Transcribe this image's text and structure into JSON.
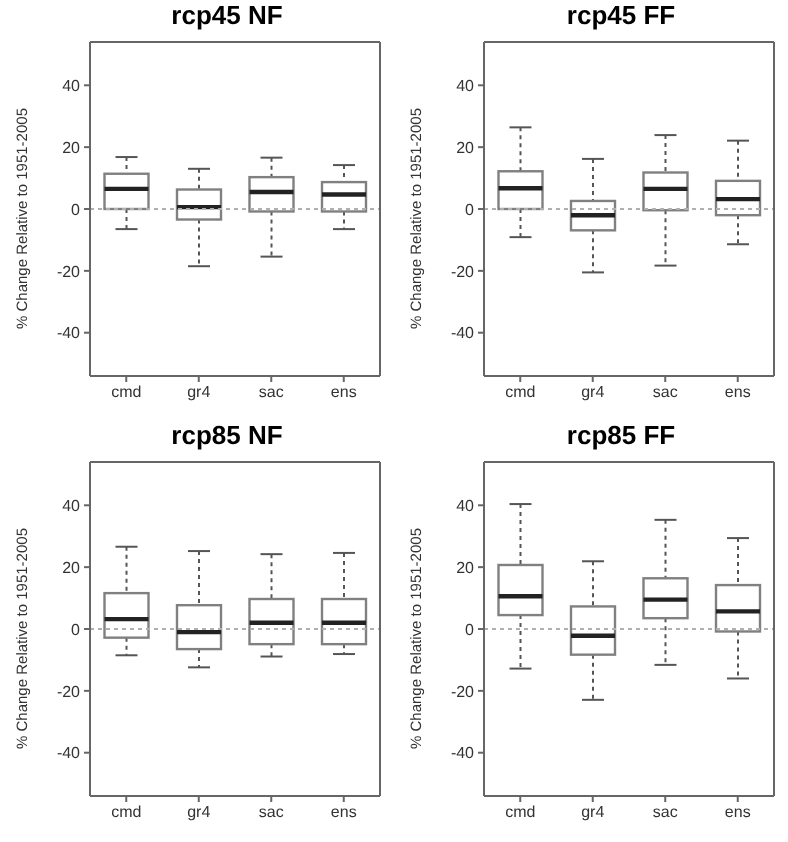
{
  "chart_data": [
    {
      "type": "box",
      "title": "rcp45 NF",
      "ylabel": "% Change Relative to 1951-2005",
      "categories": [
        "cmd",
        "gr4",
        "sac",
        "ens"
      ],
      "color": "#808080",
      "ylim": [
        -54,
        54
      ],
      "yticks": [
        -40,
        -20,
        0,
        20,
        40
      ],
      "ref_lines": [
        {
          "axis": "y",
          "value": 0,
          "line_style": "dotted",
          "color": "#b0b0b0"
        }
      ],
      "boxes": [
        {
          "low": -6.5,
          "q1": 0,
          "median": 6.5,
          "q3": 11.4,
          "high": 16.8
        },
        {
          "low": -18.5,
          "q1": -3.4,
          "median": 0.6,
          "q3": 6.3,
          "high": 13
        },
        {
          "low": -15.4,
          "q1": -0.8,
          "median": 5.5,
          "q3": 10.3,
          "high": 16.6
        },
        {
          "low": -6.5,
          "q1": -0.8,
          "median": 4.7,
          "q3": 8.7,
          "high": 14.2
        }
      ]
    },
    {
      "type": "box",
      "title": "rcp45 FF",
      "ylabel": "% Change Relative to 1951-2005",
      "categories": [
        "cmd",
        "gr4",
        "sac",
        "ens"
      ],
      "color": "#808080",
      "ylim": [
        -54,
        54
      ],
      "yticks": [
        -40,
        -20,
        0,
        20,
        40
      ],
      "ref_lines": [
        {
          "axis": "y",
          "value": 0,
          "line_style": "dotted",
          "color": "#b0b0b0"
        }
      ],
      "boxes": [
        {
          "low": -9.1,
          "q1": 0,
          "median": 6.7,
          "q3": 12.2,
          "high": 26.4
        },
        {
          "low": -20.5,
          "q1": -6.9,
          "median": -2,
          "q3": 2.6,
          "high": 16.2
        },
        {
          "low": -18.3,
          "q1": -0.4,
          "median": 6.5,
          "q3": 11.8,
          "high": 23.9
        },
        {
          "low": -11.4,
          "q1": -2,
          "median": 3.2,
          "q3": 9.1,
          "high": 22.1
        }
      ]
    },
    {
      "type": "box",
      "title": "rcp85 NF",
      "ylabel": "% Change Relative to 1951-2005",
      "categories": [
        "cmd",
        "gr4",
        "sac",
        "ens"
      ],
      "color": "#808080",
      "ylim": [
        -54,
        54
      ],
      "yticks": [
        -40,
        -20,
        0,
        20,
        40
      ],
      "ref_lines": [
        {
          "axis": "y",
          "value": 0,
          "line_style": "dotted",
          "color": "#b0b0b0"
        }
      ],
      "boxes": [
        {
          "low": -8.5,
          "q1": -2.8,
          "median": 3.2,
          "q3": 11.6,
          "high": 26.6
        },
        {
          "low": -12.4,
          "q1": -6.5,
          "median": -1,
          "q3": 7.7,
          "high": 25.2
        },
        {
          "low": -8.9,
          "q1": -4.9,
          "median": 2,
          "q3": 9.7,
          "high": 24.2
        },
        {
          "low": -8.1,
          "q1": -4.9,
          "median": 2,
          "q3": 9.7,
          "high": 24.6
        }
      ]
    },
    {
      "type": "box",
      "title": "rcp85 FF",
      "ylabel": "% Change Relative to 1951-2005",
      "categories": [
        "cmd",
        "gr4",
        "sac",
        "ens"
      ],
      "color": "#808080",
      "ylim": [
        -54,
        54
      ],
      "yticks": [
        -40,
        -20,
        0,
        20,
        40
      ],
      "ref_lines": [
        {
          "axis": "y",
          "value": 0,
          "line_style": "dotted",
          "color": "#b0b0b0"
        }
      ],
      "boxes": [
        {
          "low": -12.8,
          "q1": 4.5,
          "median": 10.6,
          "q3": 20.7,
          "high": 40.4
        },
        {
          "low": -22.9,
          "q1": -8.3,
          "median": -2.2,
          "q3": 7.3,
          "high": 21.9
        },
        {
          "low": -11.6,
          "q1": 3.5,
          "median": 9.5,
          "q3": 16.4,
          "high": 35.3
        },
        {
          "low": -16,
          "q1": -0.8,
          "median": 5.7,
          "q3": 14.2,
          "high": 29.4
        }
      ]
    }
  ]
}
